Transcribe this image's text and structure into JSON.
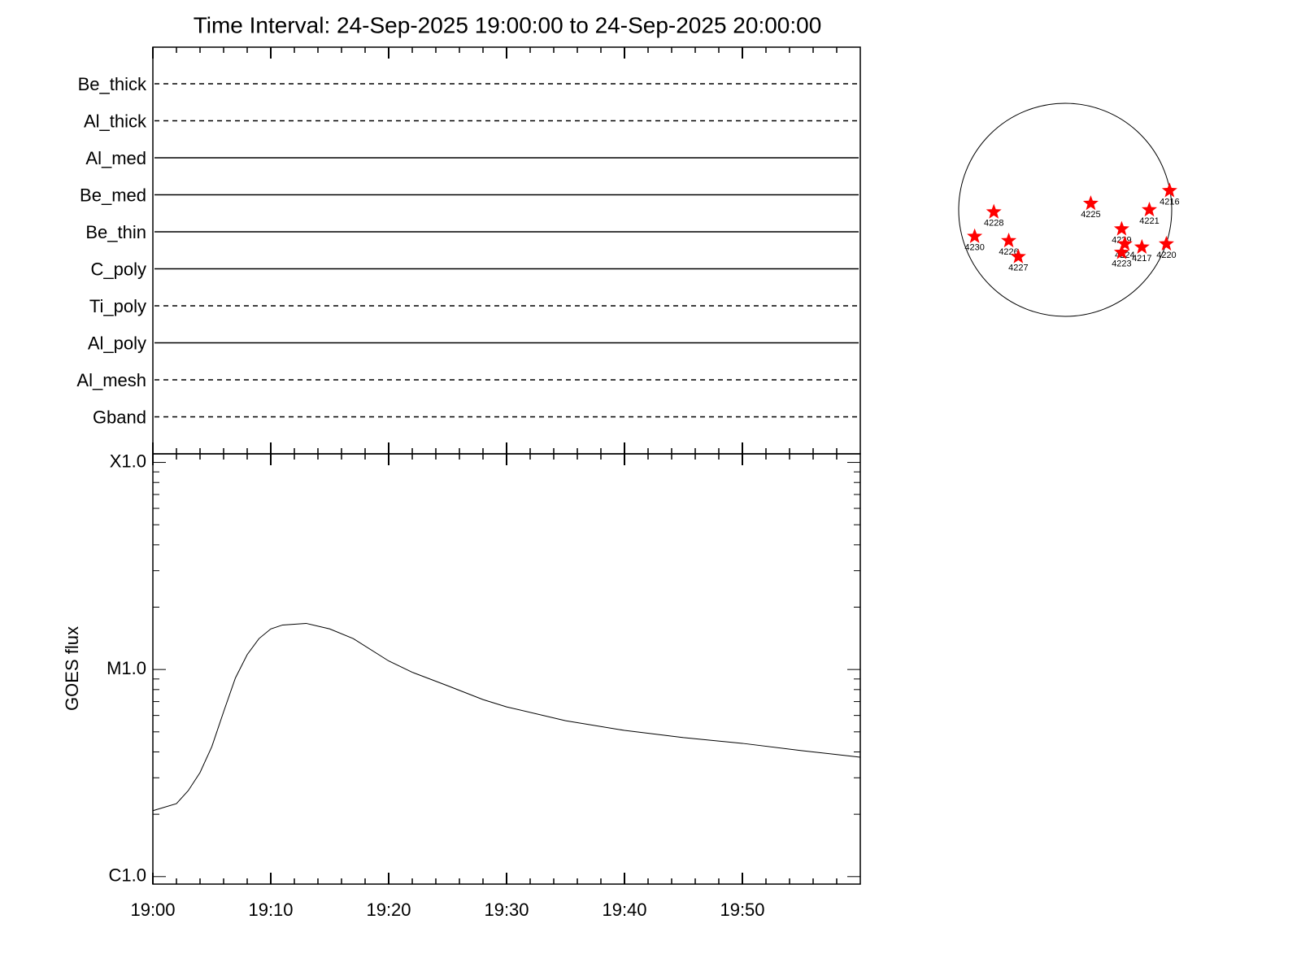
{
  "chart_data": [
    {
      "type": "filters",
      "title": "Time Interval: 24-Sep-2025 19:00:00 to 24-Sep-2025 20:00:00",
      "categories": [
        "Be_thick",
        "Al_thick",
        "Al_med",
        "Be_med",
        "Be_thin",
        "C_poly",
        "Ti_poly",
        "Al_poly",
        "Al_mesh",
        "Gband"
      ],
      "line_styles": [
        "dashed",
        "dashed",
        "solid",
        "solid",
        "solid",
        "solid",
        "dashed",
        "solid",
        "dashed",
        "dashed"
      ]
    },
    {
      "type": "line",
      "ylabel": "GOES flux",
      "color": "#000000",
      "log_y": true,
      "x": [
        "19:00",
        "19:02",
        "19:03",
        "19:04",
        "19:05",
        "19:06",
        "19:07",
        "19:08",
        "19:09",
        "19:10",
        "19:11",
        "19:13",
        "19:15",
        "19:17",
        "19:20",
        "19:22",
        "19:25",
        "19:28",
        "19:30",
        "19:35",
        "19:40",
        "19:45",
        "19:50",
        "19:55",
        "20:00"
      ],
      "values": [
        2.08e-06,
        2.25e-06,
        2.6e-06,
        3.18e-06,
        4.24e-06,
        6.25e-06,
        9.1e-06,
        1.18e-05,
        1.41e-05,
        1.57e-05,
        1.64e-05,
        1.67e-05,
        1.57e-05,
        1.41e-05,
        1.1e-05,
        9.7e-06,
        8.35e-06,
        7.16e-06,
        6.6e-06,
        5.66e-06,
        5.08e-06,
        4.69e-06,
        4.4e-06,
        4.06e-06,
        3.77e-06
      ],
      "xlim": [
        "19:00",
        "20:00"
      ],
      "xticks": [
        "19:00",
        "19:10",
        "19:20",
        "19:30",
        "19:40",
        "19:50"
      ],
      "xminorticks": [
        "19:02",
        "19:04",
        "19:06",
        "19:08",
        "19:12",
        "19:14",
        "19:16",
        "19:18",
        "19:22",
        "19:24",
        "19:26",
        "19:28",
        "19:32",
        "19:34",
        "19:36",
        "19:38",
        "19:42",
        "19:44",
        "19:46",
        "19:48",
        "19:52",
        "19:54",
        "19:56",
        "19:58"
      ],
      "ylim": [
        9.2e-07,
        0.00011
      ],
      "yticks": [
        {
          "value": 1e-06,
          "label": "C1.0"
        },
        {
          "value": 1e-05,
          "label": "M1.0"
        },
        {
          "value": 0.0001,
          "label": "X1.0"
        }
      ],
      "yminorticks": [
        2e-06,
        3e-06,
        4e-06,
        5e-06,
        6e-06,
        7e-06,
        8e-06,
        9e-06,
        2e-05,
        3e-05,
        4e-05,
        5e-05,
        6e-05,
        7e-05,
        8e-05,
        9e-05
      ]
    },
    {
      "type": "scatter",
      "marker": "star",
      "xlim": [
        -1,
        1
      ],
      "ylim": [
        -1,
        1
      ],
      "x": [
        0.98,
        -0.67,
        0.24,
        0.79,
        -0.85,
        0.53,
        -0.53,
        -0.44,
        0.56,
        0.72,
        0.95,
        0.53
      ],
      "series": [
        {
          "color": "#ff0000",
          "values": [
            0.18,
            -0.02,
            0.06,
            0.0,
            -0.25,
            -0.18,
            -0.29,
            -0.44,
            -0.32,
            -0.35,
            -0.32,
            -0.4
          ]
        }
      ],
      "point_labels": [
        "4216",
        "4228",
        "4225",
        "4221",
        "4230",
        "4229",
        "4226",
        "4227",
        "4224",
        "4217",
        "4220",
        "4223"
      ]
    }
  ]
}
